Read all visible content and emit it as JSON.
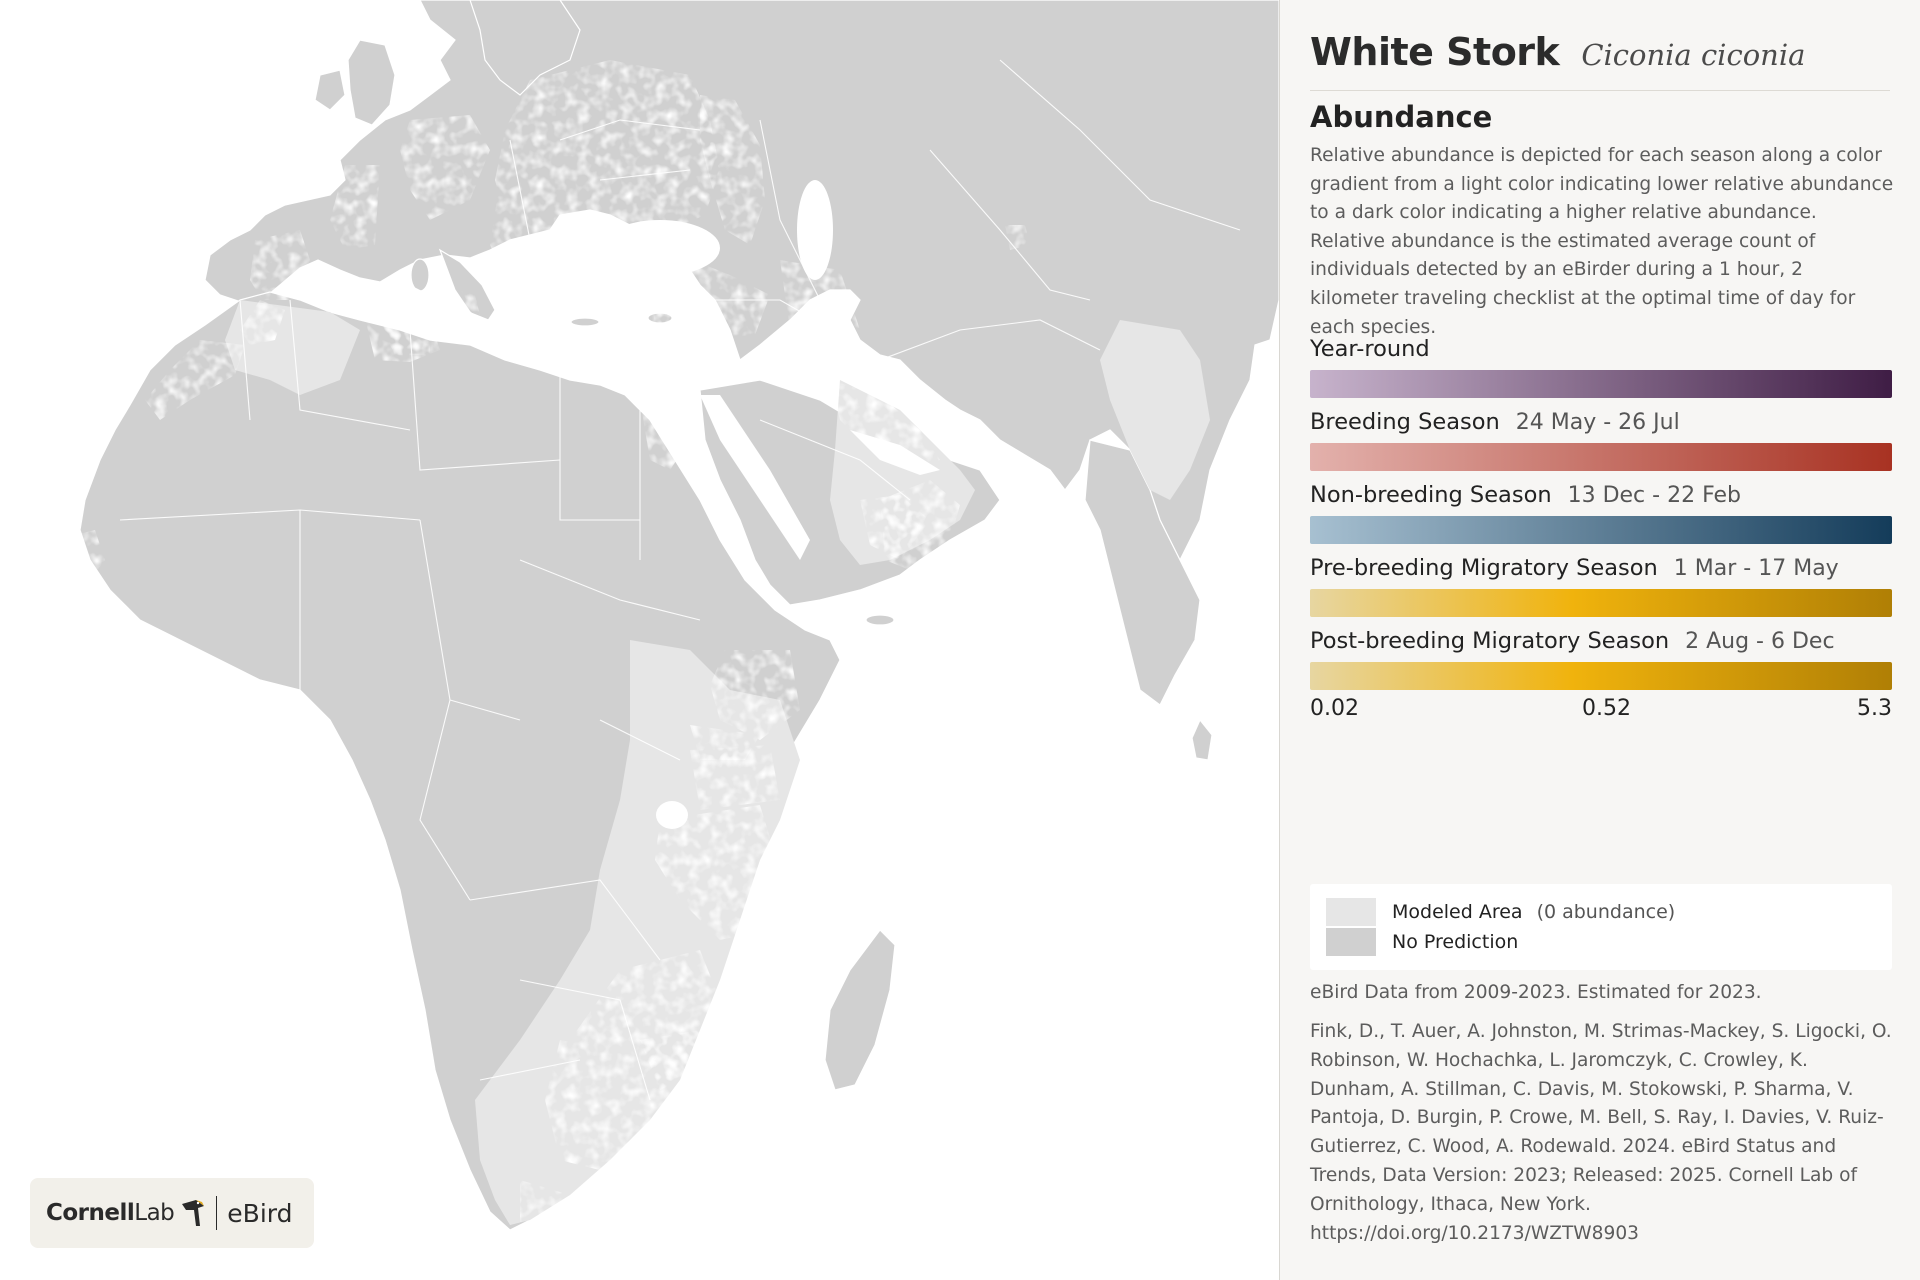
{
  "header": {
    "common_name": "White Stork",
    "scientific_name": "Ciconia ciconia"
  },
  "abundance": {
    "heading": "Abundance",
    "description": "Relative abundance is depicted for each season along a color gradient from a light color indicating lower relative abundance to a dark color indicating a higher relative abundance. Relative abundance is the estimated average count of individuals detected by an eBirder during a 1 hour, 2 kilometer traveling checklist at the optimal time of day for each species."
  },
  "seasons": [
    {
      "label": "Year-round",
      "dates": "",
      "color_light": "#c7b3cc",
      "color_dark": "#3f1d45"
    },
    {
      "label": "Breeding Season",
      "dates": "24 May - 26 Jul",
      "color_light": "#e3b1ac",
      "color_dark": "#a83222"
    },
    {
      "label": "Non-breeding Season",
      "dates": "13 Dec - 22 Feb",
      "color_light": "#a7c0d1",
      "color_dark": "#143c5a"
    },
    {
      "label": "Pre-breeding Migratory Season",
      "dates": "1 Mar - 17 May",
      "color_light": "#e7d6a1",
      "color_dark": "#b07f05"
    },
    {
      "label": "Post-breeding Migratory Season",
      "dates": "2 Aug - 6 Dec",
      "color_light": "#e7d6a1",
      "color_dark": "#b07f05"
    }
  ],
  "scale": {
    "min": "0.02",
    "mid": "0.52",
    "max": "5.3"
  },
  "legend": {
    "modeled_label": "Modeled Area",
    "modeled_note": "(0 abundance)",
    "modeled_color": "#e6e6e6",
    "no_prediction_label": "No Prediction",
    "no_prediction_color": "#d0d0d0"
  },
  "data_note": "eBird Data from 2009-2023. Estimated for 2023.",
  "citation": "Fink, D., T. Auer, A. Johnston, M. Strimas-Mackey, S. Ligocki, O. Robinson, W. Hochachka, L. Jaromczyk, C. Crowley, K. Dunham, A. Stillman, C. Davis, M. Stokowski, P. Sharma, V. Pantoja, D. Burgin, P. Crowe, M. Bell, S. Ray, I. Davies, V. Ruiz-Gutierrez, C. Wood, A. Rodewald. 2024. eBird Status and Trends, Data Version: 2023; Released: 2025. Cornell Lab of Ornithology, Ithaca, New York. https://doi.org/10.2173/WZTW8903",
  "logo": {
    "cornell": "Cornell",
    "lab": "Lab",
    "ebird": "eBird"
  },
  "map_colors": {
    "land": "#d0d0d0",
    "water": "#ffffff",
    "border": "#ffffff"
  }
}
